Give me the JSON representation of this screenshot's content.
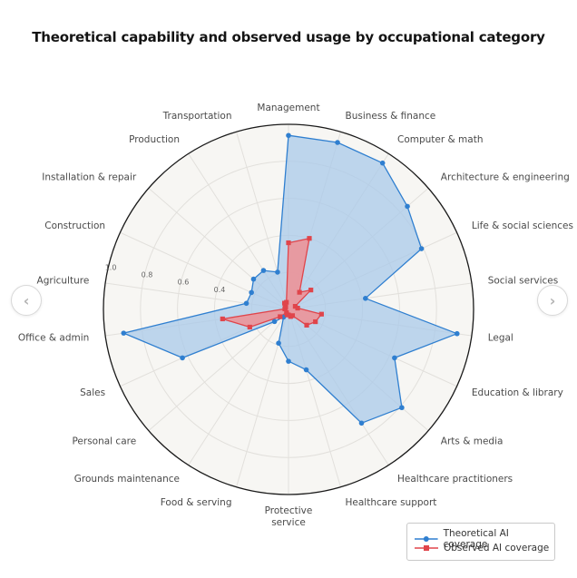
{
  "page": {
    "title": "Theoretical capability and observed usage by occupational category",
    "nav": {
      "prev_icon": "‹",
      "next_icon": "›"
    }
  },
  "colors": {
    "background": "#f7f6f3",
    "grid": "#e2e0dc",
    "outer_ring": "#1a1a1a",
    "theoretical_line": "#2f7fd0",
    "theoretical_fill": "#aac9e9",
    "observed_line": "#e0454b",
    "observed_fill": "#ef8f94",
    "label": "#4a4a4a",
    "radial_label": "#666666"
  },
  "chart_data": {
    "type": "radar",
    "title": "Theoretical capability and observed usage by occupational category",
    "categories": [
      "Management",
      "Business & finance",
      "Computer & math",
      "Architecture & engineering",
      "Life & social sciences",
      "Social services",
      "Legal",
      "Education & library",
      "Arts & media",
      "Healthcare practitioners",
      "Healthcare support",
      "Protective service",
      "Food & serving",
      "Grounds maintenance",
      "Personal care",
      "Sales",
      "Office & admin",
      "Agriculture",
      "Construction",
      "Installation & repair",
      "Production",
      "Transportation"
    ],
    "radial_ticks": [
      0.4,
      0.6,
      0.8,
      1.0
    ],
    "radial_tick_labels": [
      "0.4",
      "0.6",
      "0.8",
      "1.0"
    ],
    "rlim": [
      0,
      1.0
    ],
    "legend_position": "bottom-right",
    "series": [
      {
        "name": "Theoretical AI coverage",
        "marker": "circle",
        "values": [
          0.94,
          0.94,
          0.94,
          0.85,
          0.79,
          0.42,
          0.92,
          0.63,
          0.81,
          0.73,
          0.34,
          0.28,
          0.19,
          0.05,
          0.1,
          0.63,
          0.9,
          0.23,
          0.22,
          0.25,
          0.25,
          0.21
        ]
      },
      {
        "name": "Observed AI coverage",
        "marker": "square",
        "values": [
          0.36,
          0.4,
          0.11,
          0.16,
          0.04,
          0.05,
          0.18,
          0.16,
          0.13,
          0.04,
          0.04,
          0.03,
          0.03,
          0.02,
          0.06,
          0.23,
          0.36,
          0.02,
          0.02,
          0.02,
          0.04,
          0.04
        ]
      }
    ]
  }
}
